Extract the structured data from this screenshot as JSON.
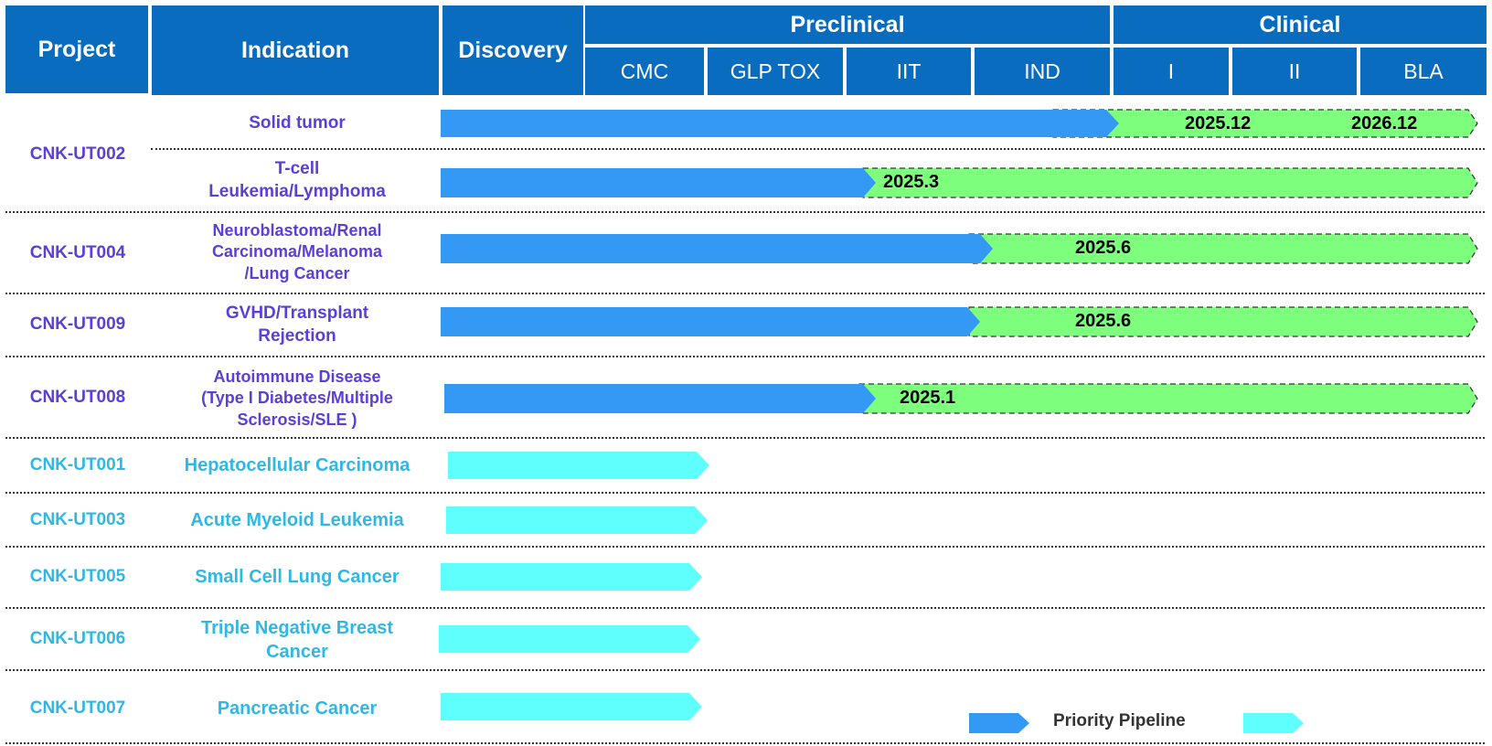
{
  "colors": {
    "header_bg": "#0a6cbf",
    "priority_bar": "#3498f5",
    "future_bar": "#7dff7d",
    "other_bar": "#5ffffd",
    "priority_text": "#5b3fd6",
    "other_text": "#2fb8e6"
  },
  "header": {
    "project": "Project",
    "indication": "Indication",
    "discovery": "Discovery",
    "preclinical": "Preclinical",
    "clinical": "Clinical",
    "stages": [
      "CMC",
      "GLP TOX",
      "IIT",
      "IND",
      "I",
      "II",
      "BLA"
    ]
  },
  "projects": [
    {
      "name": "CNK-UT002",
      "group": "priority"
    },
    {
      "name": "CNK-UT004",
      "group": "priority"
    },
    {
      "name": "CNK-UT009",
      "group": "priority"
    },
    {
      "name": "CNK-UT008",
      "group": "priority"
    },
    {
      "name": "CNK-UT001",
      "group": "other"
    },
    {
      "name": "CNK-UT003",
      "group": "other"
    },
    {
      "name": "CNK-UT005",
      "group": "other"
    },
    {
      "name": "CNK-UT006",
      "group": "other"
    },
    {
      "name": "CNK-UT007",
      "group": "other"
    }
  ],
  "indications": [
    {
      "lines": [
        "Solid tumor"
      ]
    },
    {
      "lines": [
        "T-cell",
        "Leukemia/Lymphoma"
      ]
    },
    {
      "lines": [
        "Neuroblastoma/Renal",
        "Carcinoma/Melanoma",
        "/Lung Cancer"
      ]
    },
    {
      "lines": [
        "GVHD/Transplant",
        "Rejection"
      ]
    },
    {
      "lines": [
        "Autoimmune Disease",
        "(Type I Diabetes/Multiple",
        "Sclerosis/SLE )"
      ]
    },
    {
      "lines": [
        "Hepatocellular Carcinoma"
      ]
    },
    {
      "lines": [
        "Acute Myeloid Leukemia"
      ]
    },
    {
      "lines": [
        "Small Cell Lung Cancer"
      ]
    },
    {
      "lines": [
        "Triple Negative Breast",
        "Cancer"
      ]
    },
    {
      "lines": [
        "Pancreatic Cancer"
      ]
    }
  ],
  "pipeline": [
    {
      "indication": "Solid tumor",
      "current": "IND",
      "milestones": [
        "2025.12",
        "2026.12"
      ]
    },
    {
      "indication": "T-cell Leukemia/Lymphoma",
      "current": "GLP TOX",
      "milestones": [
        "2025.3"
      ]
    },
    {
      "indication": "Neuroblastoma/Renal Carcinoma/Melanoma /Lung Cancer",
      "current": "IIT",
      "milestones": [
        "2025.6"
      ]
    },
    {
      "indication": "GVHD/Transplant Rejection",
      "current": "IIT",
      "milestones": [
        "2025.6"
      ]
    },
    {
      "indication": "Autoimmune Disease (Type I Diabetes/Multiple Sclerosis/SLE )",
      "current": "GLP TOX",
      "milestones": [
        "2025.1"
      ]
    },
    {
      "indication": "Hepatocellular Carcinoma",
      "current": "CMC",
      "milestones": []
    },
    {
      "indication": "Acute Myeloid Leukemia",
      "current": "CMC",
      "milestones": []
    },
    {
      "indication": "Small Cell Lung Cancer",
      "current": "CMC",
      "milestones": []
    },
    {
      "indication": "Triple Negative Breast Cancer",
      "current": "CMC",
      "milestones": []
    },
    {
      "indication": "Pancreatic Cancer",
      "current": "CMC",
      "milestones": []
    }
  ],
  "legend": {
    "priority": "Priority Pipeline"
  }
}
